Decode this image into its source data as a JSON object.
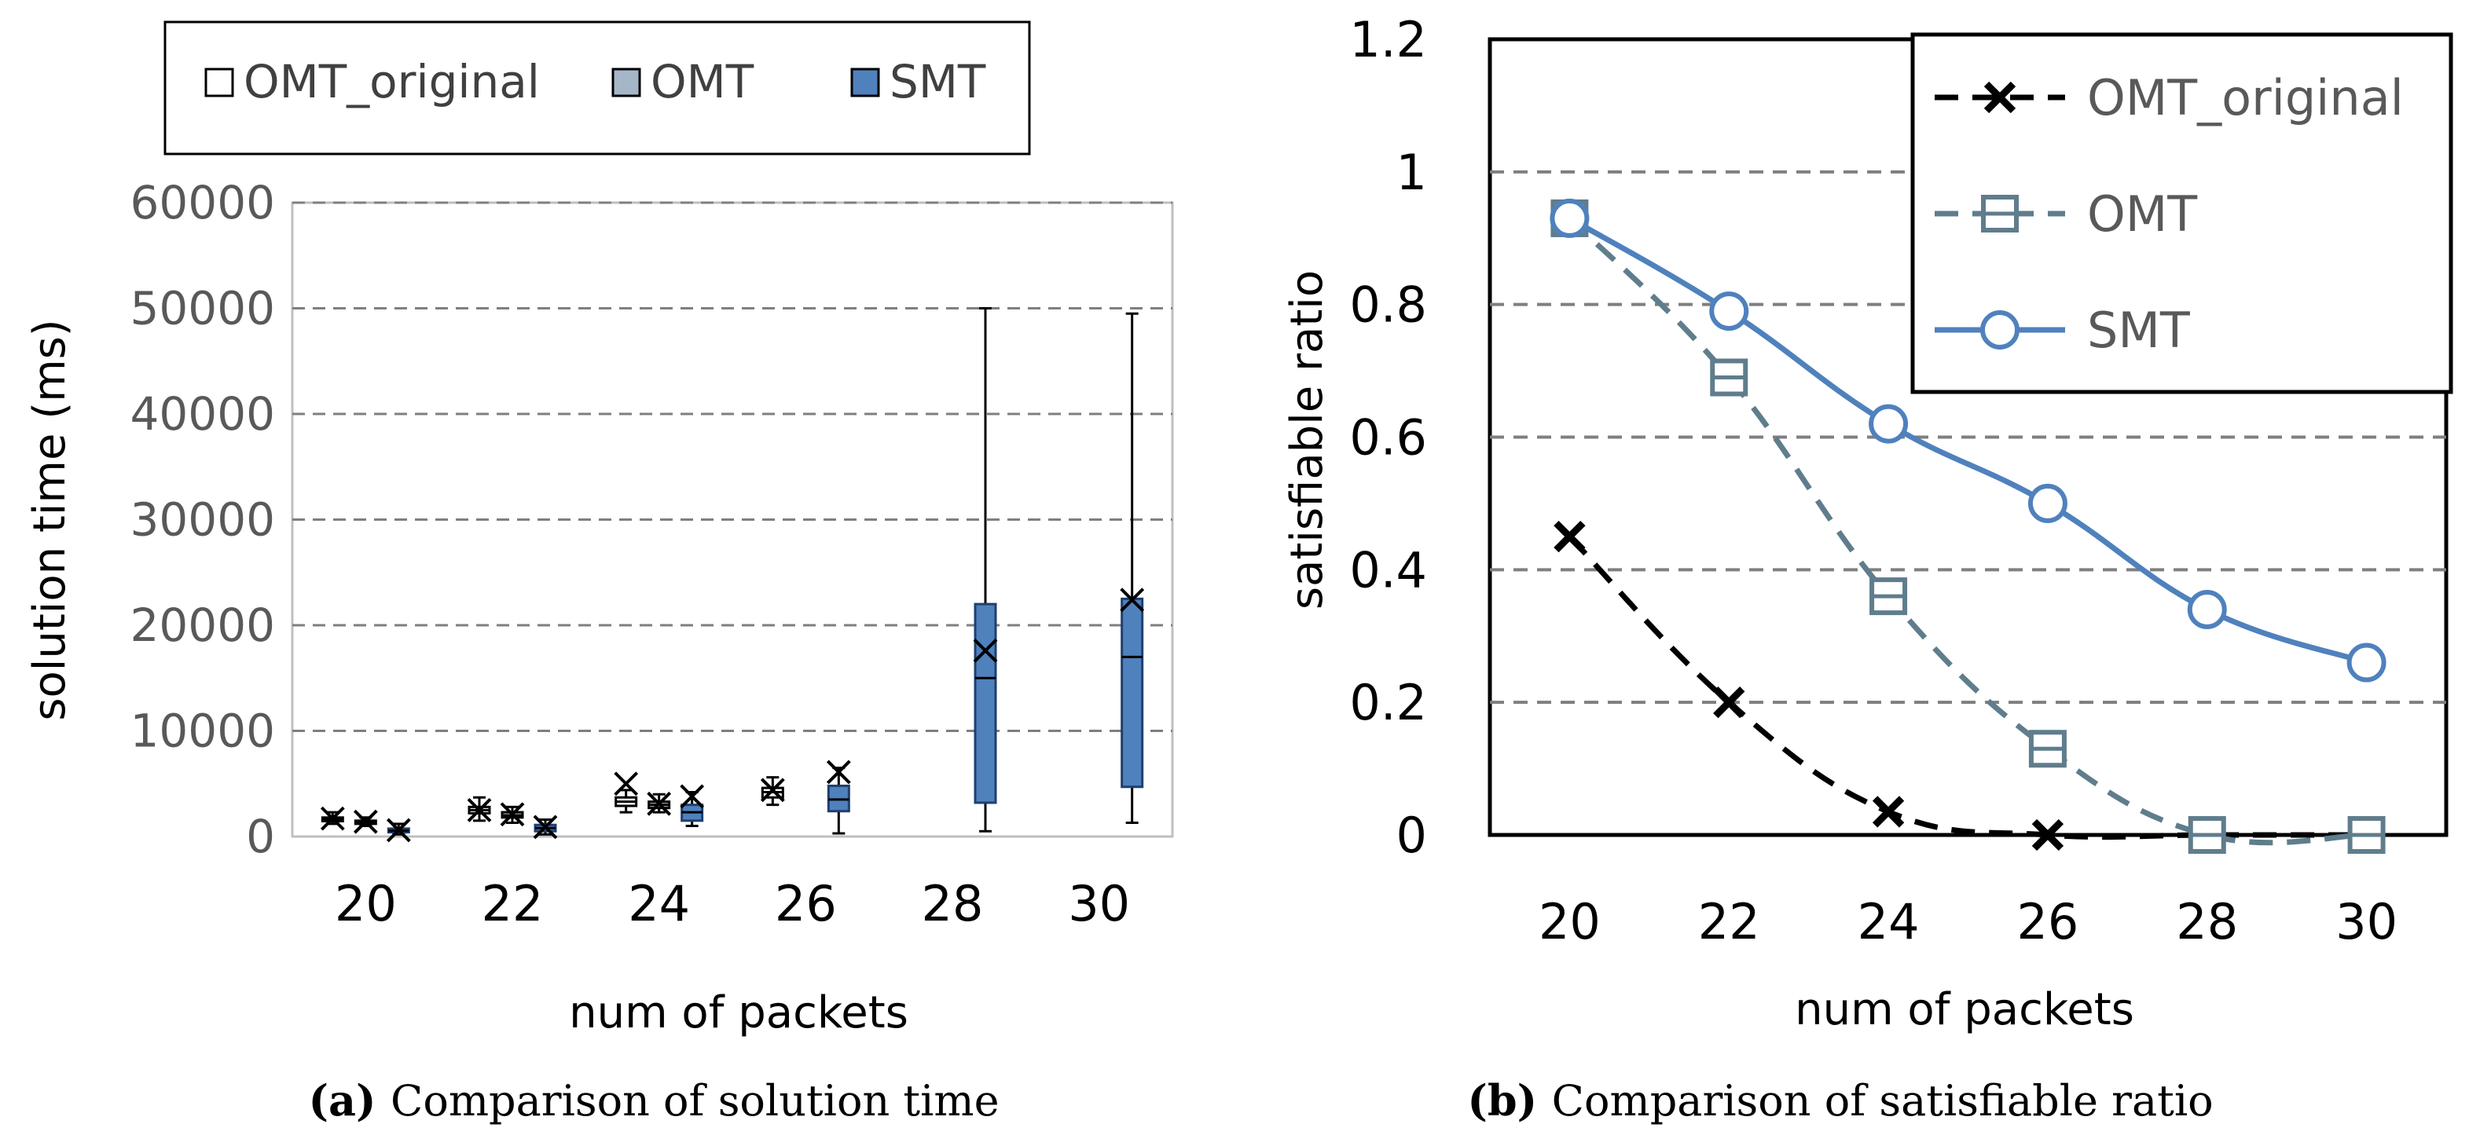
{
  "chart_data": [
    {
      "type": "box",
      "caption_label": "(a)",
      "caption_text": "Comparison of solution time",
      "xlabel": "num of packets",
      "ylabel": "solution time (ms)",
      "categories": [
        "20",
        "22",
        "24",
        "26",
        "28",
        "30"
      ],
      "yticks": [
        "0",
        "10000",
        "20000",
        "30000",
        "40000",
        "50000",
        "60000"
      ],
      "ylim": [
        0,
        60000
      ],
      "grid": true,
      "legend_position": "top",
      "series": [
        {
          "name": "OMT_original",
          "color": "#ffffff",
          "boxes": [
            {
              "min": 1200,
              "q1": 1450,
              "median": 1600,
              "q3": 1800,
              "max": 2300,
              "mean": 1700
            },
            {
              "min": 1500,
              "q1": 2200,
              "median": 2500,
              "q3": 2800,
              "max": 3700,
              "mean": 2500
            },
            {
              "min": 2300,
              "q1": 2900,
              "median": 3300,
              "q3": 3700,
              "max": 4400,
              "mean": 5000
            },
            {
              "min": 3000,
              "q1": 3700,
              "median": 4200,
              "q3": 4600,
              "max": 5600,
              "mean": 4400
            },
            null,
            null
          ]
        },
        {
          "name": "OMT",
          "color": "#a5b6c8",
          "boxes": [
            {
              "min": 1000,
              "q1": 1200,
              "median": 1350,
              "q3": 1500,
              "max": 1800,
              "mean": 1400
            },
            {
              "min": 1300,
              "q1": 1800,
              "median": 2000,
              "q3": 2300,
              "max": 2800,
              "mean": 2100
            },
            {
              "min": 2300,
              "q1": 2700,
              "median": 3000,
              "q3": 3300,
              "max": 4000,
              "mean": 3100
            },
            null,
            null,
            null
          ]
        },
        {
          "name": "SMT",
          "color": "#4f81bd",
          "boxes": [
            {
              "min": 200,
              "q1": 400,
              "median": 550,
              "q3": 750,
              "max": 1200,
              "mean": 600
            },
            {
              "min": 200,
              "q1": 500,
              "median": 800,
              "q3": 1100,
              "max": 1600,
              "mean": 900
            },
            {
              "min": 1000,
              "q1": 1500,
              "median": 2300,
              "q3": 3000,
              "max": 4200,
              "mean": 3800
            },
            {
              "min": 300,
              "q1": 2400,
              "median": 3500,
              "q3": 4800,
              "max": 6500,
              "mean": 6100
            },
            {
              "min": 500,
              "q1": 3200,
              "median": 15000,
              "q3": 22000,
              "max": 50000,
              "mean": 17600
            },
            {
              "min": 1300,
              "q1": 4700,
              "median": 17000,
              "q3": 22500,
              "max": 49500,
              "mean": 22400
            }
          ]
        }
      ]
    },
    {
      "type": "line",
      "caption_label": "(b)",
      "caption_text": "Comparison of satisfiable ratio",
      "xlabel": "num of packets",
      "ylabel": "satisfiable ratio",
      "categories": [
        "20",
        "22",
        "24",
        "26",
        "28",
        "30"
      ],
      "yticks": [
        "0",
        "0.2",
        "0.4",
        "0.6",
        "0.8",
        "1",
        "1.2"
      ],
      "ylim": [
        0,
        1.2
      ],
      "grid": true,
      "legend_position": "top-right",
      "series": [
        {
          "name": "OMT_original",
          "color": "#000000",
          "marker": "x",
          "dashed": true,
          "values": [
            0.45,
            0.2,
            0.035,
            0.0,
            0.0,
            0.0
          ]
        },
        {
          "name": "OMT",
          "color": "#5f7d8c",
          "marker": "square",
          "dashed": true,
          "values": [
            0.93,
            0.69,
            0.36,
            0.13,
            0.0,
            0.0
          ]
        },
        {
          "name": "SMT",
          "color": "#4f81bd",
          "marker": "circle",
          "dashed": false,
          "values": [
            0.93,
            0.79,
            0.62,
            0.5,
            0.34,
            0.26
          ]
        }
      ]
    }
  ]
}
